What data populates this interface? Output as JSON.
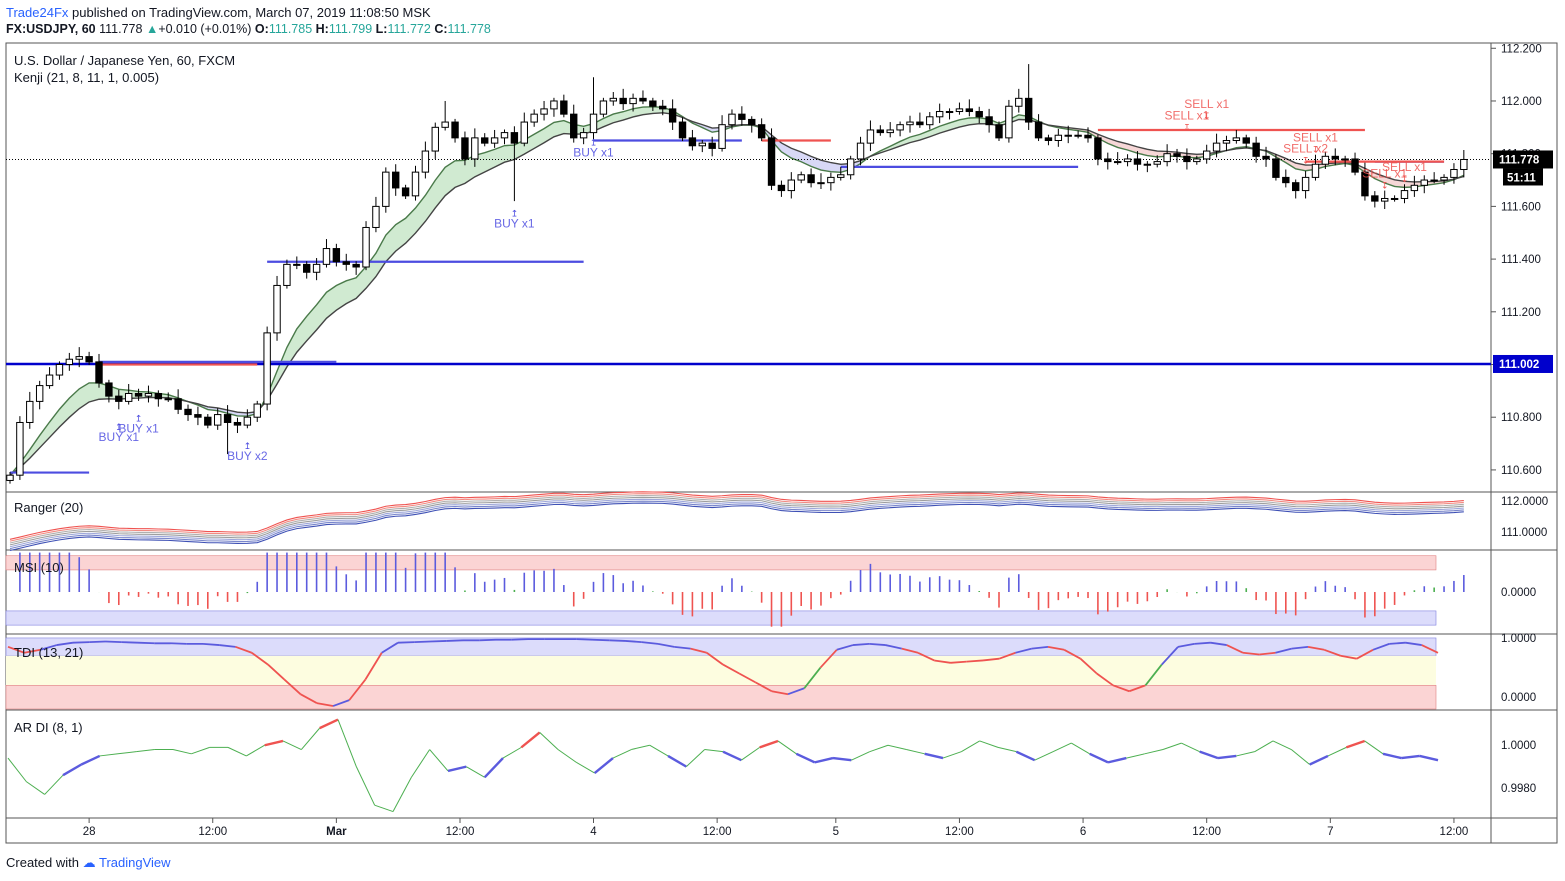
{
  "header": {
    "publisher": "Trade24Fx",
    "published_text": "published on TradingView.com, March 07, 2019 11:08:50 MSK",
    "symbol": "FX:USDJPY, 60",
    "last": "111.778",
    "change": "+0.010 (+0.01%)",
    "o_label": "O:",
    "o": "111.785",
    "h_label": "H:",
    "h": "111.799",
    "l_label": "L:",
    "l": "111.772",
    "c_label": "C:",
    "c": "111.778"
  },
  "footer": {
    "created_with": "Created with",
    "brand": "TradingView"
  },
  "chart_data": [
    {
      "type": "candlestick",
      "title": "U.S. Dollar / Japanese Yen, 60, FXCM",
      "indicator": "Kenji (21, 8, 11, 1, 0.005)",
      "ylim": [
        110.52,
        112.22
      ],
      "y_ticks": [
        "112.200",
        "112.000",
        "111.800",
        "111.600",
        "111.400",
        "111.200",
        "111.000",
        "110.800",
        "110.600"
      ],
      "price_label": "111.778",
      "countdown_label": "51:11",
      "hline_label": "111.002",
      "hline_value": 111.002,
      "x_labels": [
        "28",
        "12:00",
        "Mar",
        "12:00",
        "4",
        "12:00",
        "5",
        "12:00",
        "6",
        "12:00",
        "7",
        "12:00"
      ],
      "close": [
        110.58,
        110.78,
        110.86,
        110.92,
        110.96,
        111.0,
        111.02,
        111.03,
        111.01,
        110.93,
        110.88,
        110.86,
        110.89,
        110.88,
        110.89,
        110.87,
        110.87,
        110.83,
        110.81,
        110.8,
        110.77,
        110.81,
        110.78,
        110.77,
        110.8,
        110.85,
        111.12,
        111.3,
        111.38,
        111.38,
        111.35,
        111.38,
        111.44,
        111.39,
        111.38,
        111.37,
        111.52,
        111.6,
        111.73,
        111.67,
        111.64,
        111.73,
        111.81,
        111.9,
        111.92,
        111.86,
        111.78,
        111.86,
        111.84,
        111.86,
        111.88,
        111.84,
        111.92,
        111.95,
        111.97,
        112.0,
        111.95,
        111.86,
        111.88,
        111.95,
        112.0,
        112.01,
        111.99,
        112.01,
        112.0,
        111.98,
        111.97,
        111.92,
        111.86,
        111.83,
        111.84,
        111.82,
        111.91,
        111.95,
        111.93,
        111.91,
        111.86,
        111.68,
        111.66,
        111.7,
        111.72,
        111.69,
        111.69,
        111.71,
        111.72,
        111.78,
        111.84,
        111.89,
        111.88,
        111.89,
        111.91,
        111.92,
        111.91,
        111.94,
        111.96,
        111.96,
        111.97,
        111.96,
        111.94,
        111.91,
        111.86,
        111.98,
        112.01,
        111.92,
        111.86,
        111.85,
        111.87,
        111.87,
        111.87,
        111.86,
        111.78,
        111.77,
        111.77,
        111.78,
        111.76,
        111.76,
        111.77,
        111.8,
        111.79,
        111.77,
        111.78,
        111.81,
        111.84,
        111.85,
        111.86,
        111.84,
        111.79,
        111.78,
        111.71,
        111.69,
        111.66,
        111.71,
        111.76,
        111.79,
        111.78,
        111.78,
        111.73,
        111.64,
        111.62,
        111.63,
        111.63,
        111.66,
        111.68,
        111.7,
        111.7,
        111.71,
        111.74,
        111.778
      ]
    },
    {
      "type": "line",
      "title": "Ranger (20)",
      "ylim": [
        110.45,
        112.25
      ],
      "y_ticks": [
        "112.0000",
        "111.0000"
      ]
    },
    {
      "type": "bar",
      "title": "MSI (10)",
      "ylim": [
        -1.3,
        1.3
      ],
      "y_ticks": [
        "0.0000"
      ],
      "colors": {
        "positive": "#5b5bde",
        "weak_positive": "#4caf50",
        "negative": "#ef5350"
      }
    },
    {
      "type": "line",
      "title": "TDI (13, 21)",
      "ylim": [
        -0.2,
        1.05
      ],
      "y_ticks": [
        "1.0000",
        "0.0000"
      ],
      "values": [
        0.85,
        0.75,
        0.8,
        0.88,
        0.92,
        0.93,
        0.94,
        0.93,
        0.92,
        0.91,
        0.91,
        0.9,
        0.9,
        0.88,
        0.85,
        0.75,
        0.55,
        0.3,
        0.05,
        -0.1,
        -0.15,
        -0.05,
        0.3,
        0.75,
        0.92,
        0.93,
        0.94,
        0.95,
        0.96,
        0.96,
        0.97,
        0.97,
        0.98,
        0.98,
        0.98,
        0.98,
        0.97,
        0.96,
        0.95,
        0.93,
        0.9,
        0.85,
        0.82,
        0.75,
        0.55,
        0.4,
        0.25,
        0.1,
        0.05,
        0.15,
        0.5,
        0.8,
        0.88,
        0.9,
        0.88,
        0.82,
        0.75,
        0.62,
        0.58,
        0.6,
        0.62,
        0.65,
        0.75,
        0.82,
        0.85,
        0.8,
        0.65,
        0.4,
        0.2,
        0.1,
        0.2,
        0.55,
        0.85,
        0.9,
        0.92,
        0.88,
        0.75,
        0.72,
        0.75,
        0.82,
        0.85,
        0.8,
        0.7,
        0.65,
        0.8,
        0.9,
        0.92,
        0.88,
        0.75
      ]
    },
    {
      "type": "line",
      "title": "AR DI (8, 1)",
      "ylim": [
        0.9966,
        1.0016
      ],
      "y_ticks": [
        "1.0000",
        "0.9980"
      ],
      "values": [
        0.9994,
        0.9983,
        0.9977,
        0.9986,
        0.9991,
        0.9995,
        0.9996,
        0.9997,
        0.9998,
        0.9998,
        0.9996,
        0.9999,
        0.9999,
        0.9995,
        1.0,
        1.0002,
        0.9998,
        1.0008,
        1.0012,
        0.999,
        0.9972,
        0.9969,
        0.9985,
        0.9998,
        0.9988,
        0.999,
        0.9985,
        0.9994,
        0.9999,
        1.0006,
        0.9998,
        0.9992,
        0.9987,
        0.9994,
        0.9998,
        1.0,
        0.9995,
        0.999,
        0.9998,
        0.9997,
        0.9993,
        0.9999,
        1.0002,
        0.9996,
        0.9992,
        0.9994,
        0.9993,
        0.9997,
        1.0,
        0.9998,
        0.9996,
        0.9994,
        0.9997,
        1.0002,
        0.9999,
        0.9997,
        0.9993,
        0.9997,
        1.0001,
        0.9996,
        0.9992,
        0.9994,
        0.9996,
        0.9998,
        1.0001,
        0.9997,
        0.9994,
        0.9995,
        0.9997,
        1.0002,
        0.9998,
        0.9991,
        0.9995,
        0.9999,
        1.0002,
        0.9996,
        0.9994,
        0.9995,
        0.9993
      ]
    }
  ],
  "trade_markers": [
    {
      "label": "BUY x1"
    },
    {
      "label": "BUY x1"
    },
    {
      "label": "BUY x2"
    },
    {
      "label": "BUY x1"
    },
    {
      "label": "BUY x1"
    },
    {
      "label": "SELL x1"
    },
    {
      "label": "SELL x1"
    },
    {
      "label": "SELL x2"
    },
    {
      "label": "SELL x1"
    },
    {
      "label": "SELL x1"
    },
    {
      "label": "SELL x1"
    }
  ],
  "colors": {
    "up": "#ffffff",
    "down": "#000000",
    "outline": "#000000",
    "buy": "#4c4ce0",
    "sell": "#ef5350",
    "hline": "#0000cc",
    "cloud_bull": "#c8e6c9",
    "cloud_bear": "#d1d1f5",
    "cloud_pink": "#f5d0d0",
    "price_tag": "#000000",
    "zone_red": "#fbd4d4",
    "zone_blue": "#dcdcfb",
    "zone_yellow": "#fdfde0"
  }
}
